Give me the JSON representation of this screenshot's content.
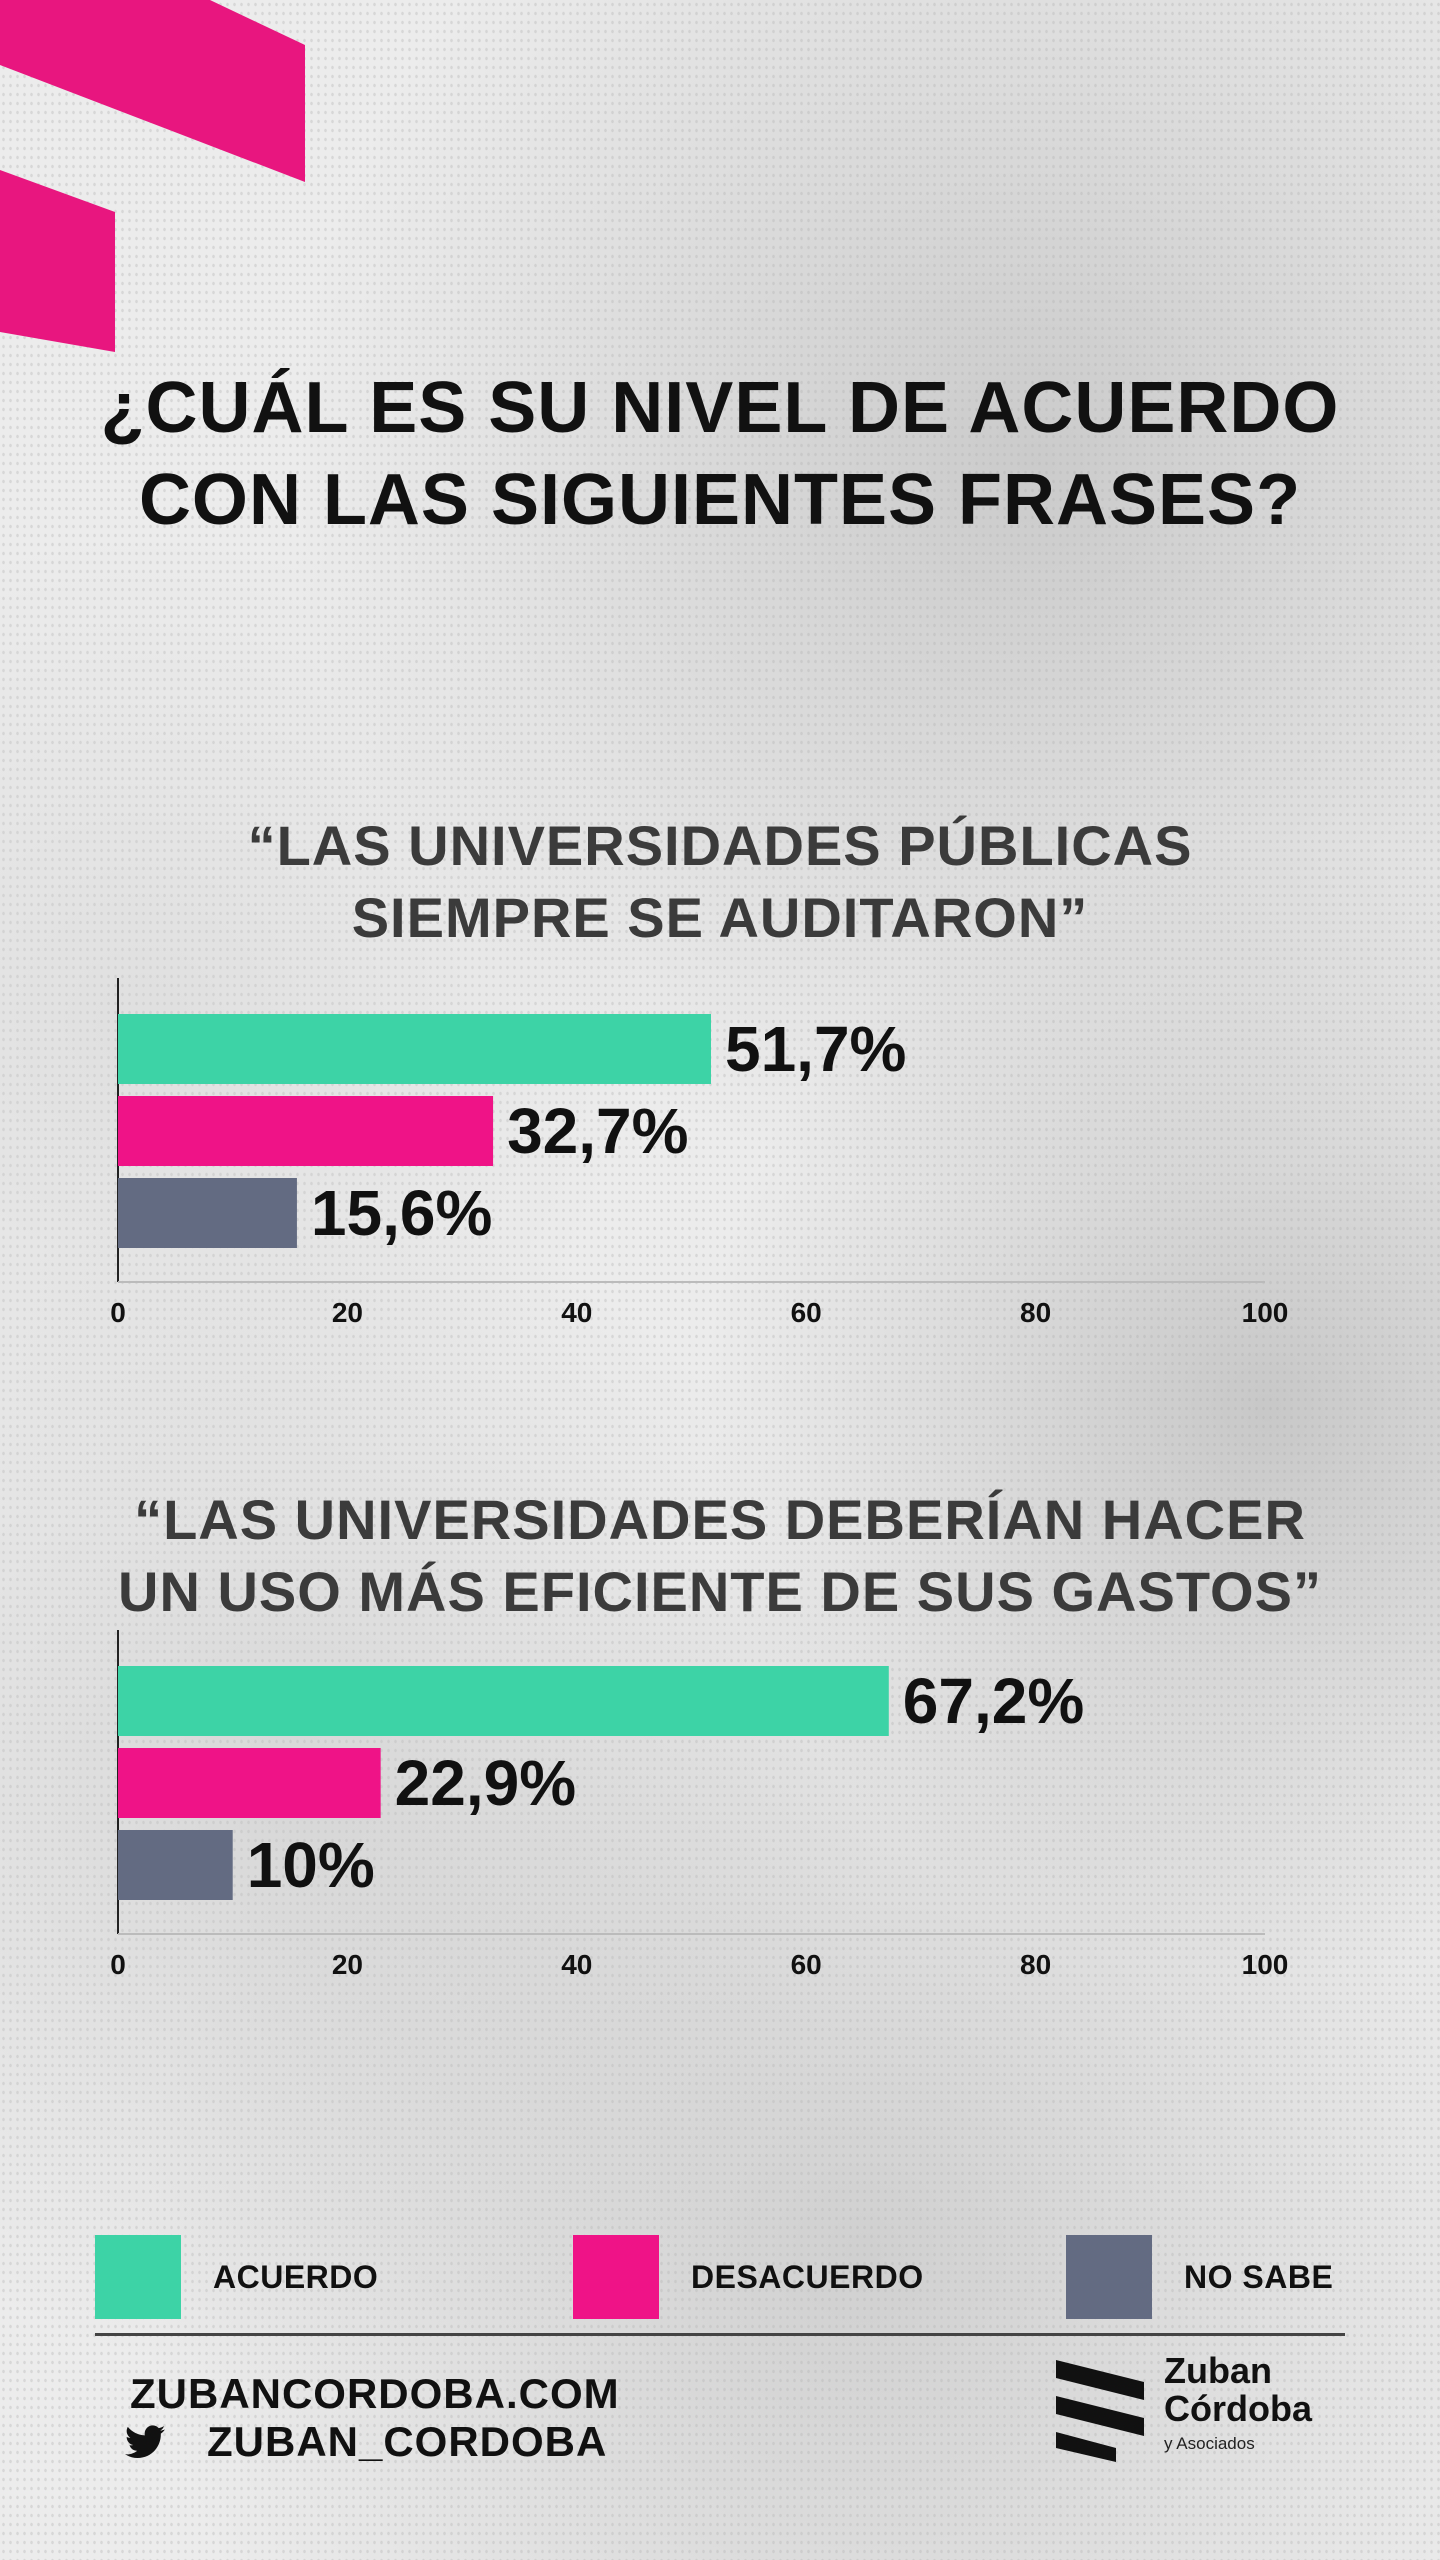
{
  "title": "¿CUÁL ES SU NIVEL DE ACUERDO CON LAS SIGUIENTES FRASES?",
  "title_lines": [
    "¿CUÁL ES SU NIVEL DE ACUERDO",
    "CON LAS SIGUIENTES FRASES?"
  ],
  "colors": {
    "acuerdo": "#3dd3a6",
    "desacuerdo": "#ef1387",
    "no_sabe": "#636b82",
    "accent": "#e8167f"
  },
  "chart_data": [
    {
      "type": "bar",
      "orientation": "horizontal",
      "title": "“LAS UNIVERSIDADES PÚBLICAS SIEMPRE SE AUDITARON”",
      "title_lines": [
        "“LAS UNIVERSIDADES PÚBLICAS",
        "SIEMPRE SE AUDITARON”"
      ],
      "categories": [
        "Acuerdo",
        "Desacuerdo",
        "No sabe"
      ],
      "values": [
        51.7,
        32.7,
        15.6
      ],
      "value_labels": [
        "51,7%",
        "32,7%",
        "15,6%"
      ],
      "xlim": [
        0,
        100
      ],
      "ticks": [
        0,
        20,
        40,
        60,
        80,
        100
      ],
      "tick_labels": [
        "0",
        "20",
        "40",
        "60",
        "80",
        "100"
      ],
      "grid": false
    },
    {
      "type": "bar",
      "orientation": "horizontal",
      "title": "“LAS UNIVERSIDADES DEBERÍAN HACER UN USO MÁS EFICIENTE DE SUS GASTOS”",
      "title_lines": [
        "“LAS UNIVERSIDADES DEBERÍAN HACER",
        "UN USO MÁS EFICIENTE DE SUS GASTOS”"
      ],
      "categories": [
        "Acuerdo",
        "Desacuerdo",
        "No sabe"
      ],
      "values": [
        67.2,
        22.9,
        10
      ],
      "value_labels": [
        "67,2%",
        "22,9%",
        "10%"
      ],
      "xlim": [
        0,
        100
      ],
      "ticks": [
        0,
        20,
        40,
        60,
        80,
        100
      ],
      "tick_labels": [
        "0",
        "20",
        "40",
        "60",
        "80",
        "100"
      ],
      "grid": false
    }
  ],
  "legend": {
    "items": [
      {
        "label": "ACUERDO",
        "color": "#3dd3a6"
      },
      {
        "label": "DESACUERDO",
        "color": "#ef1387"
      },
      {
        "label": "NO SABE",
        "color": "#636b82"
      }
    ]
  },
  "footer": {
    "website": "ZUBANCORDOBA.COM",
    "twitter": "ZUBAN_CORDOBA",
    "logo_lines": [
      "Zuban",
      "Córdoba"
    ],
    "logo_sub": "y Asociados"
  }
}
